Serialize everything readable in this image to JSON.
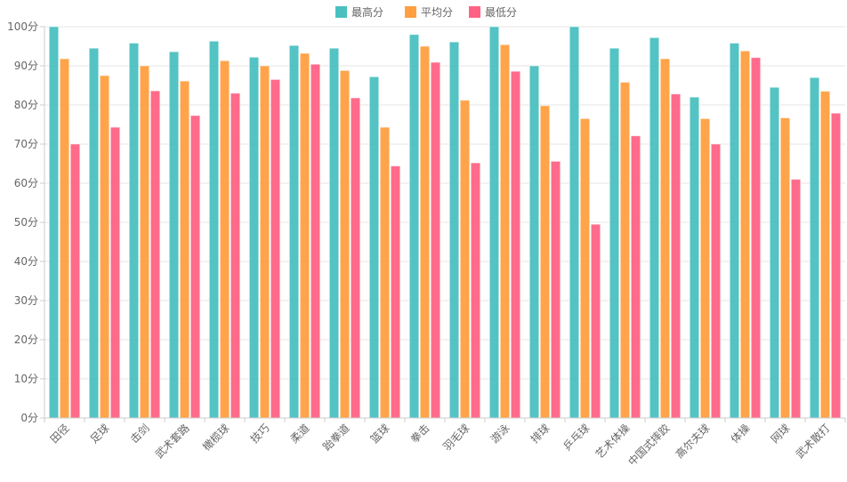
{
  "chart_data": {
    "type": "bar",
    "categories": [
      "田径",
      "足球",
      "击剑",
      "武术套路",
      "橄榄球",
      "技巧",
      "柔道",
      "跆拳道",
      "篮球",
      "拳击",
      "羽毛球",
      "游泳",
      "排球",
      "乒乓球",
      "艺术体操",
      "中国式摔跤",
      "高尔夫球",
      "体操",
      "网球",
      "武术散打"
    ],
    "series": [
      {
        "name": "最高分",
        "color": "#4bc0c0",
        "values": [
          100,
          94.5,
          95.8,
          93.6,
          96.3,
          92.2,
          95.2,
          94.5,
          87.2,
          98,
          96.1,
          100,
          90,
          100,
          94.5,
          97.2,
          82,
          95.8,
          84.5,
          87
        ]
      },
      {
        "name": "平均分",
        "color": "#ff9f40",
        "values": [
          91.8,
          87.5,
          90,
          86.1,
          91.3,
          90,
          93.2,
          88.8,
          74.3,
          95,
          81.2,
          95.4,
          79.8,
          76.5,
          85.8,
          91.8,
          76.5,
          93.8,
          76.7,
          83.5
        ]
      },
      {
        "name": "最低分",
        "color": "#ff6384",
        "values": [
          70,
          74.3,
          83.6,
          77.3,
          83,
          86.5,
          90.4,
          81.8,
          64.4,
          90.9,
          65.2,
          88.6,
          65.6,
          49.5,
          72.1,
          82.8,
          70,
          92.1,
          61,
          77.9
        ]
      }
    ],
    "y_ticks": [
      "0分",
      "10分",
      "20分",
      "30分",
      "40分",
      "50分",
      "60分",
      "70分",
      "80分",
      "90分",
      "100分"
    ],
    "ylim": [
      0,
      100
    ],
    "grid": true,
    "legend_position": "top-center"
  }
}
